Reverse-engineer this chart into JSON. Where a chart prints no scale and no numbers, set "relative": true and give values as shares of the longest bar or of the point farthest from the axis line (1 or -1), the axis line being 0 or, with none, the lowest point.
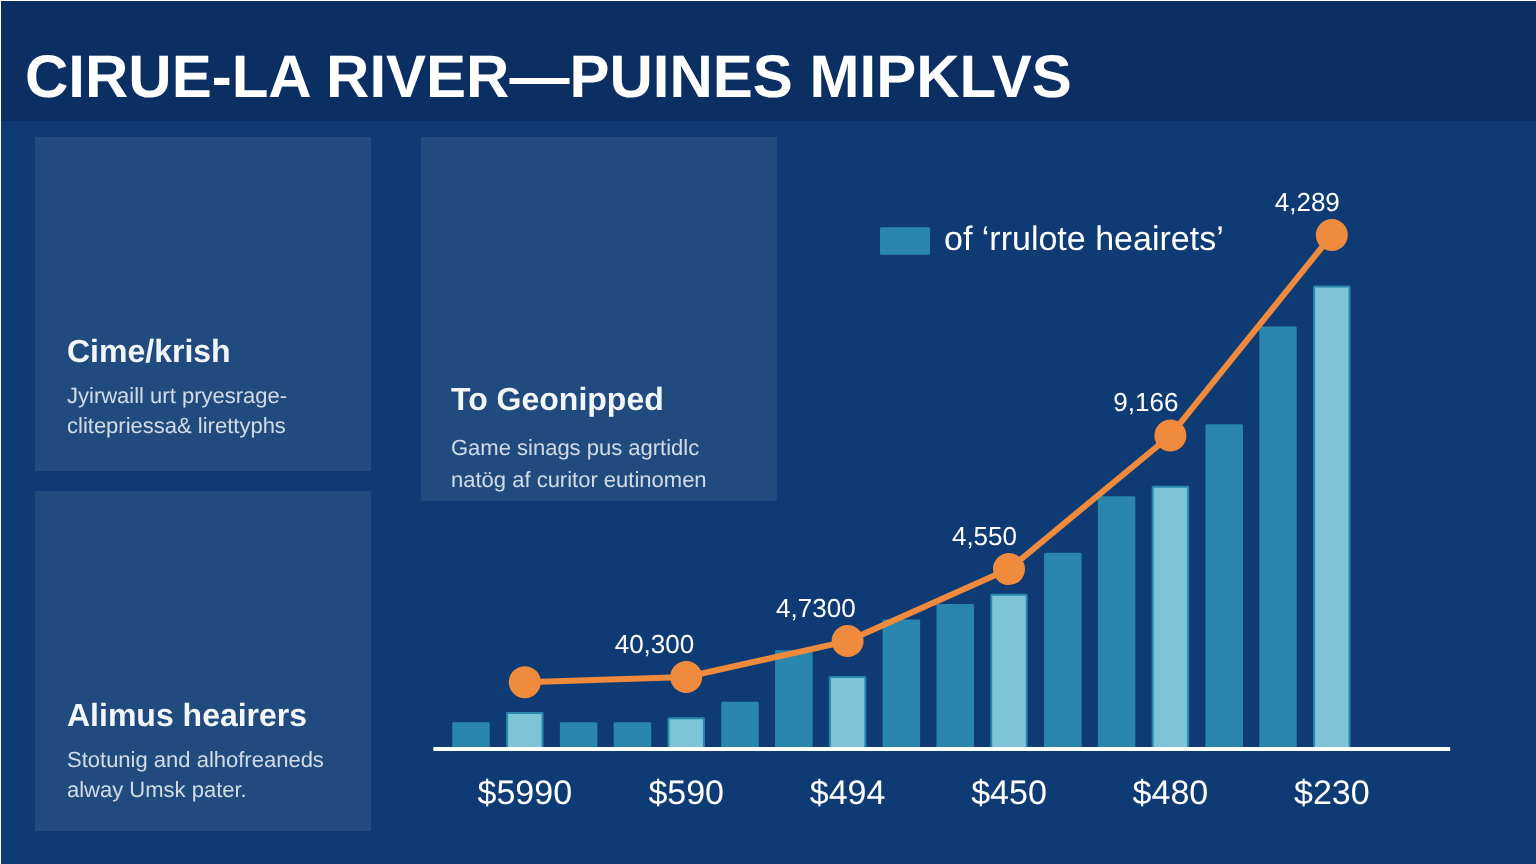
{
  "chart_data": {
    "type": "bar",
    "title": "CIRUE-LA RIVER—PUINES MIPKLVS",
    "relative": true,
    "legend": "top",
    "categories": [
      null,
      "$5990",
      null,
      null,
      "$590",
      null,
      null,
      "$494",
      null,
      null,
      "$450",
      null,
      null,
      "$480",
      null,
      null,
      "$230"
    ],
    "series": [
      {
        "name": "of ‘rrulote heairets’",
        "color": "#2a86ad",
        "colors": [
          "#2a86ad",
          "#7cc4d6",
          "#2a86ad",
          "#2a86ad",
          "#7cc4d6",
          "#2a86ad",
          "#2a86ad",
          "#7cc4d6",
          "#2a86ad",
          "#2a86ad",
          "#7cc4d6",
          "#2a86ad",
          "#2a86ad",
          "#7cc4d6",
          "#2a86ad",
          "#2a86ad",
          "#7cc4d6"
        ],
        "values": [
          0.05,
          0.07,
          0.05,
          0.05,
          0.06,
          0.09,
          0.19,
          0.14,
          0.25,
          0.28,
          0.3,
          0.38,
          0.49,
          0.51,
          0.63,
          0.82,
          0.9
        ]
      },
      {
        "type": "line",
        "color": "#f08a3c",
        "marker": "circle",
        "x": [
          "$5990",
          "$590",
          "$494",
          "$450",
          "$480",
          "$230"
        ],
        "values": [
          0.13,
          0.14,
          0.21,
          0.35,
          0.61,
          1.0
        ]
      }
    ],
    "annotations": [
      {
        "text": "40,300",
        "x": "$590",
        "y": 0.14
      },
      {
        "text": "4,7300",
        "x": "$494",
        "y": 0.21
      },
      {
        "text": "4,550",
        "x": "$450",
        "y": 0.35
      },
      {
        "text": "9,166",
        "x": "$480",
        "y": 0.61
      },
      {
        "text": "4,289",
        "x": "$230",
        "y": 1.0
      },
      "Cime/krish",
      "Jyirwaill urt pryesrage-",
      "clitepriessa& lirettyphs",
      "Alimus heairers",
      "Stotunig and alhofreaneds",
      "alway Umsk pater.",
      "To Geonipped",
      "Game sinags pus agrtidlc",
      "natög af curitor eutinomen"
    ]
  }
}
